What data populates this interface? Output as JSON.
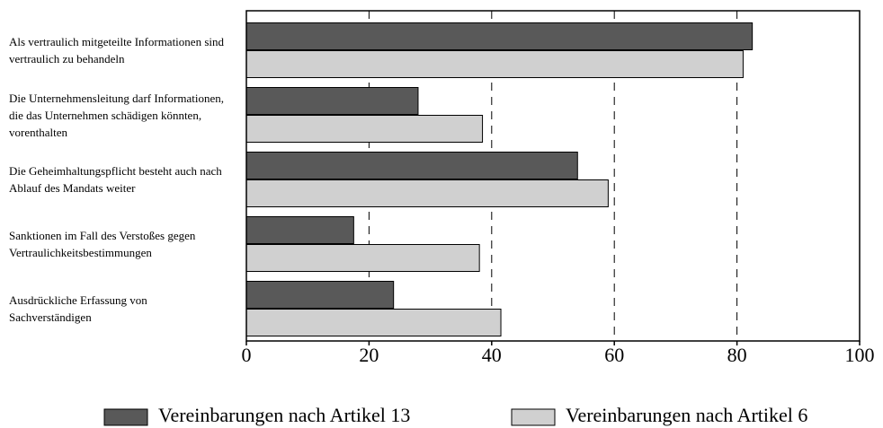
{
  "chart_data": {
    "type": "barh",
    "categories": [
      "Als vertraulich mitgeteilte Informationen sind vertraulich zu behandeln",
      "Die Unternehmensleitung darf Informationen, die das Unternehmen schädigen könnten, vorenthalten",
      "Die Geheimhaltungspflicht besteht auch nach Ablauf des Mandats weiter",
      "Sanktionen im Fall des Verstoßes gegen Vertraulichkeitsbestimmungen",
      "Ausdrückliche Erfassung von Sachverständigen"
    ],
    "series": [
      {
        "name": "Vereinbarungen nach Artikel 13",
        "color": "#595959",
        "values": [
          82.5,
          28,
          54,
          17.5,
          24
        ]
      },
      {
        "name": "Vereinbarungen nach Artikel 6",
        "color": "#d0d0d0",
        "values": [
          81,
          38.5,
          59,
          38,
          41.5
        ]
      }
    ],
    "xlim": [
      0,
      100
    ],
    "xticks": [
      0,
      20,
      40,
      60,
      80,
      100
    ],
    "grid": true
  }
}
